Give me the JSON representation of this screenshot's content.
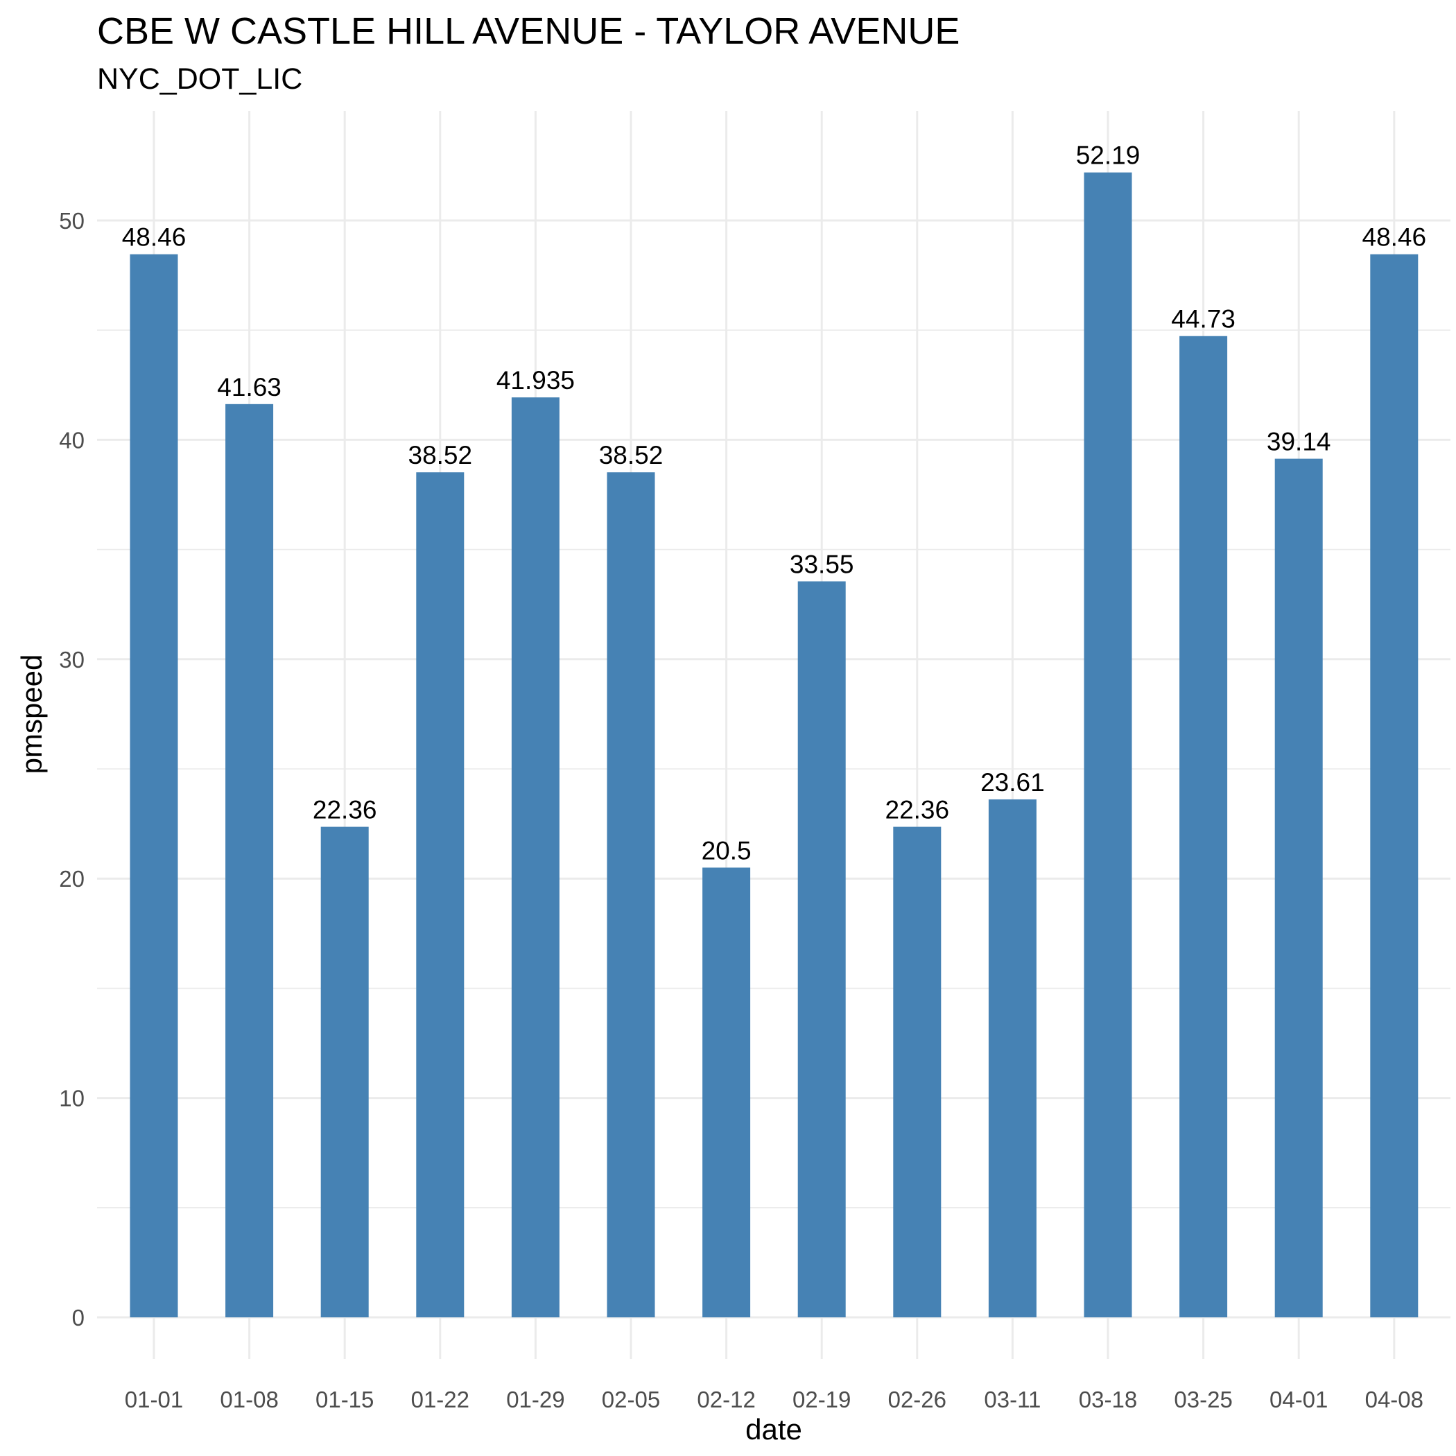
{
  "chart_data": {
    "type": "bar",
    "title": "CBE W CASTLE HILL AVENUE - TAYLOR AVENUE",
    "subtitle": "NYC_DOT_LIC",
    "xlabel": "date",
    "ylabel": "pmspeed",
    "categories": [
      "01-01",
      "01-08",
      "01-15",
      "01-22",
      "01-29",
      "02-05",
      "02-12",
      "02-19",
      "02-26",
      "03-11",
      "03-18",
      "03-25",
      "04-01",
      "04-08"
    ],
    "values": [
      48.46,
      41.63,
      22.36,
      38.52,
      41.935,
      38.52,
      20.5,
      33.55,
      22.36,
      23.61,
      52.19,
      44.73,
      39.14,
      48.46
    ],
    "value_labels": [
      "48.46",
      "41.63",
      "22.36",
      "38.52",
      "41.935",
      "38.52",
      "20.5",
      "33.55",
      "22.36",
      "23.61",
      "52.19",
      "44.73",
      "39.14",
      "48.46"
    ],
    "yticks": [
      0,
      10,
      20,
      30,
      40,
      50
    ],
    "ylim": [
      0,
      54.8
    ],
    "grid": true,
    "legend": "none",
    "bar_color": "#4682B4",
    "grid_color": "#EBEBEB"
  }
}
